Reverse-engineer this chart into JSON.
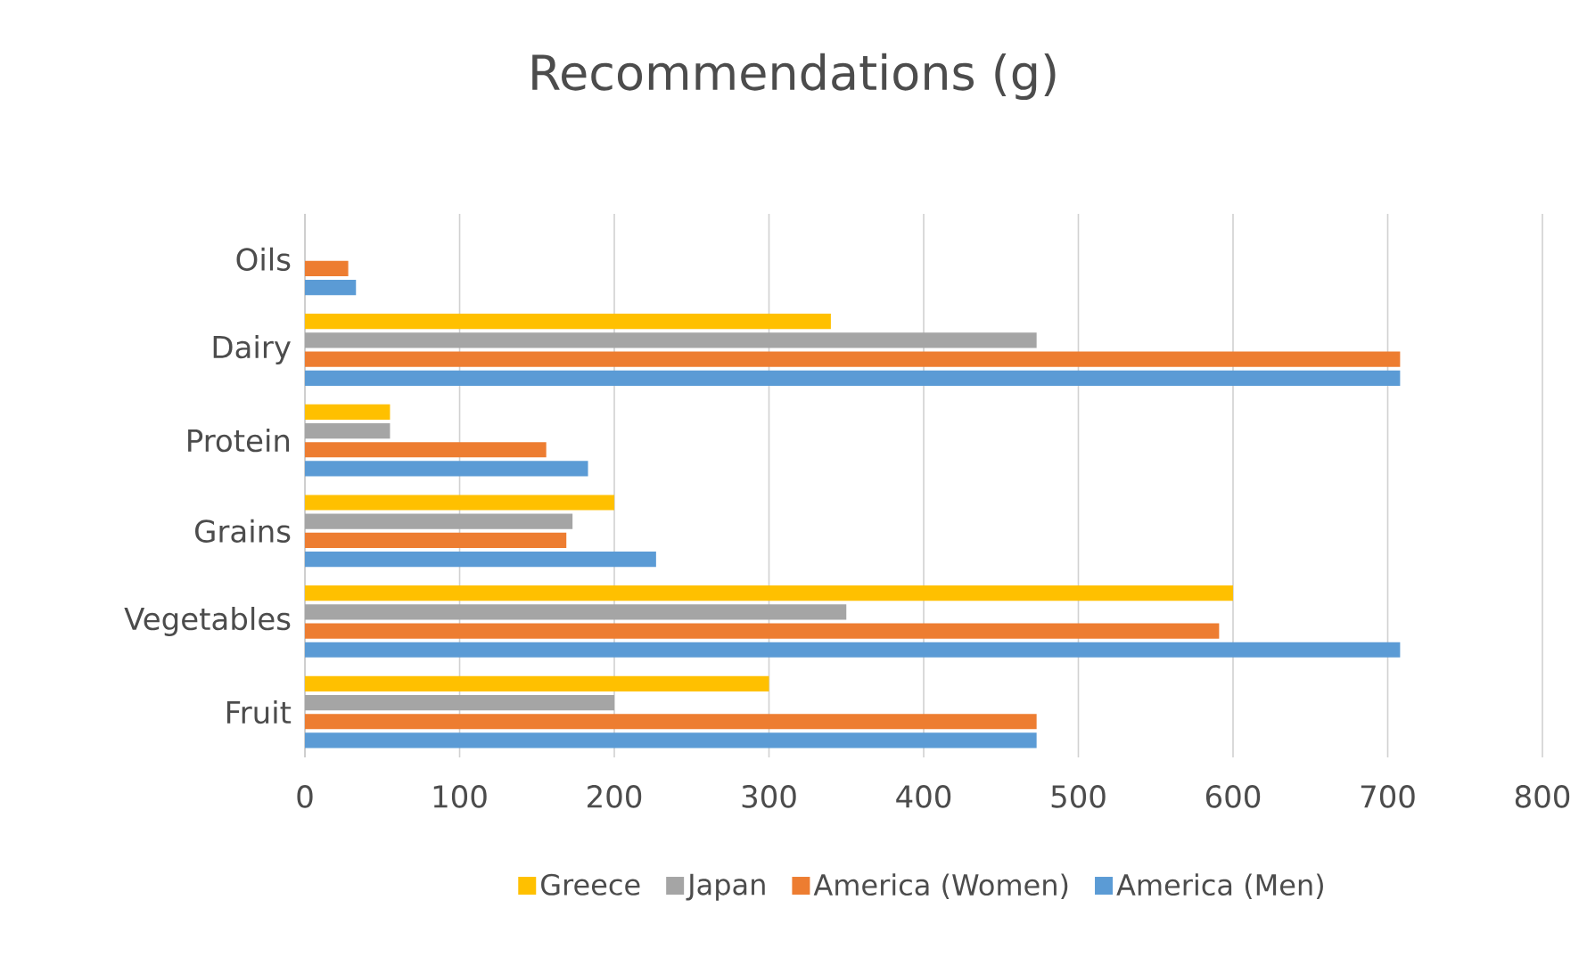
{
  "chart_data": {
    "type": "bar",
    "orientation": "horizontal",
    "title": "Recommendations (g)",
    "categories": [
      "Oils",
      "Dairy",
      "Protein",
      "Grains",
      "Vegetables",
      "Fruit"
    ],
    "series": [
      {
        "name": "Greece",
        "color": "#ffc000",
        "values": [
          null,
          340,
          55,
          200,
          600,
          300
        ]
      },
      {
        "name": "Japan",
        "color": "#a5a5a5",
        "values": [
          null,
          473,
          55,
          173,
          350,
          200
        ]
      },
      {
        "name": "America (Women)",
        "color": "#ed7d31",
        "values": [
          28,
          708,
          156,
          169,
          591,
          473
        ]
      },
      {
        "name": "America (Men)",
        "color": "#5b9bd5",
        "values": [
          33,
          708,
          183,
          227,
          708,
          473
        ]
      }
    ],
    "xlim": [
      0,
      800
    ],
    "xticks": [
      0,
      100,
      200,
      300,
      400,
      500,
      600,
      700,
      800
    ],
    "grid": "x",
    "legend": "bottom"
  }
}
